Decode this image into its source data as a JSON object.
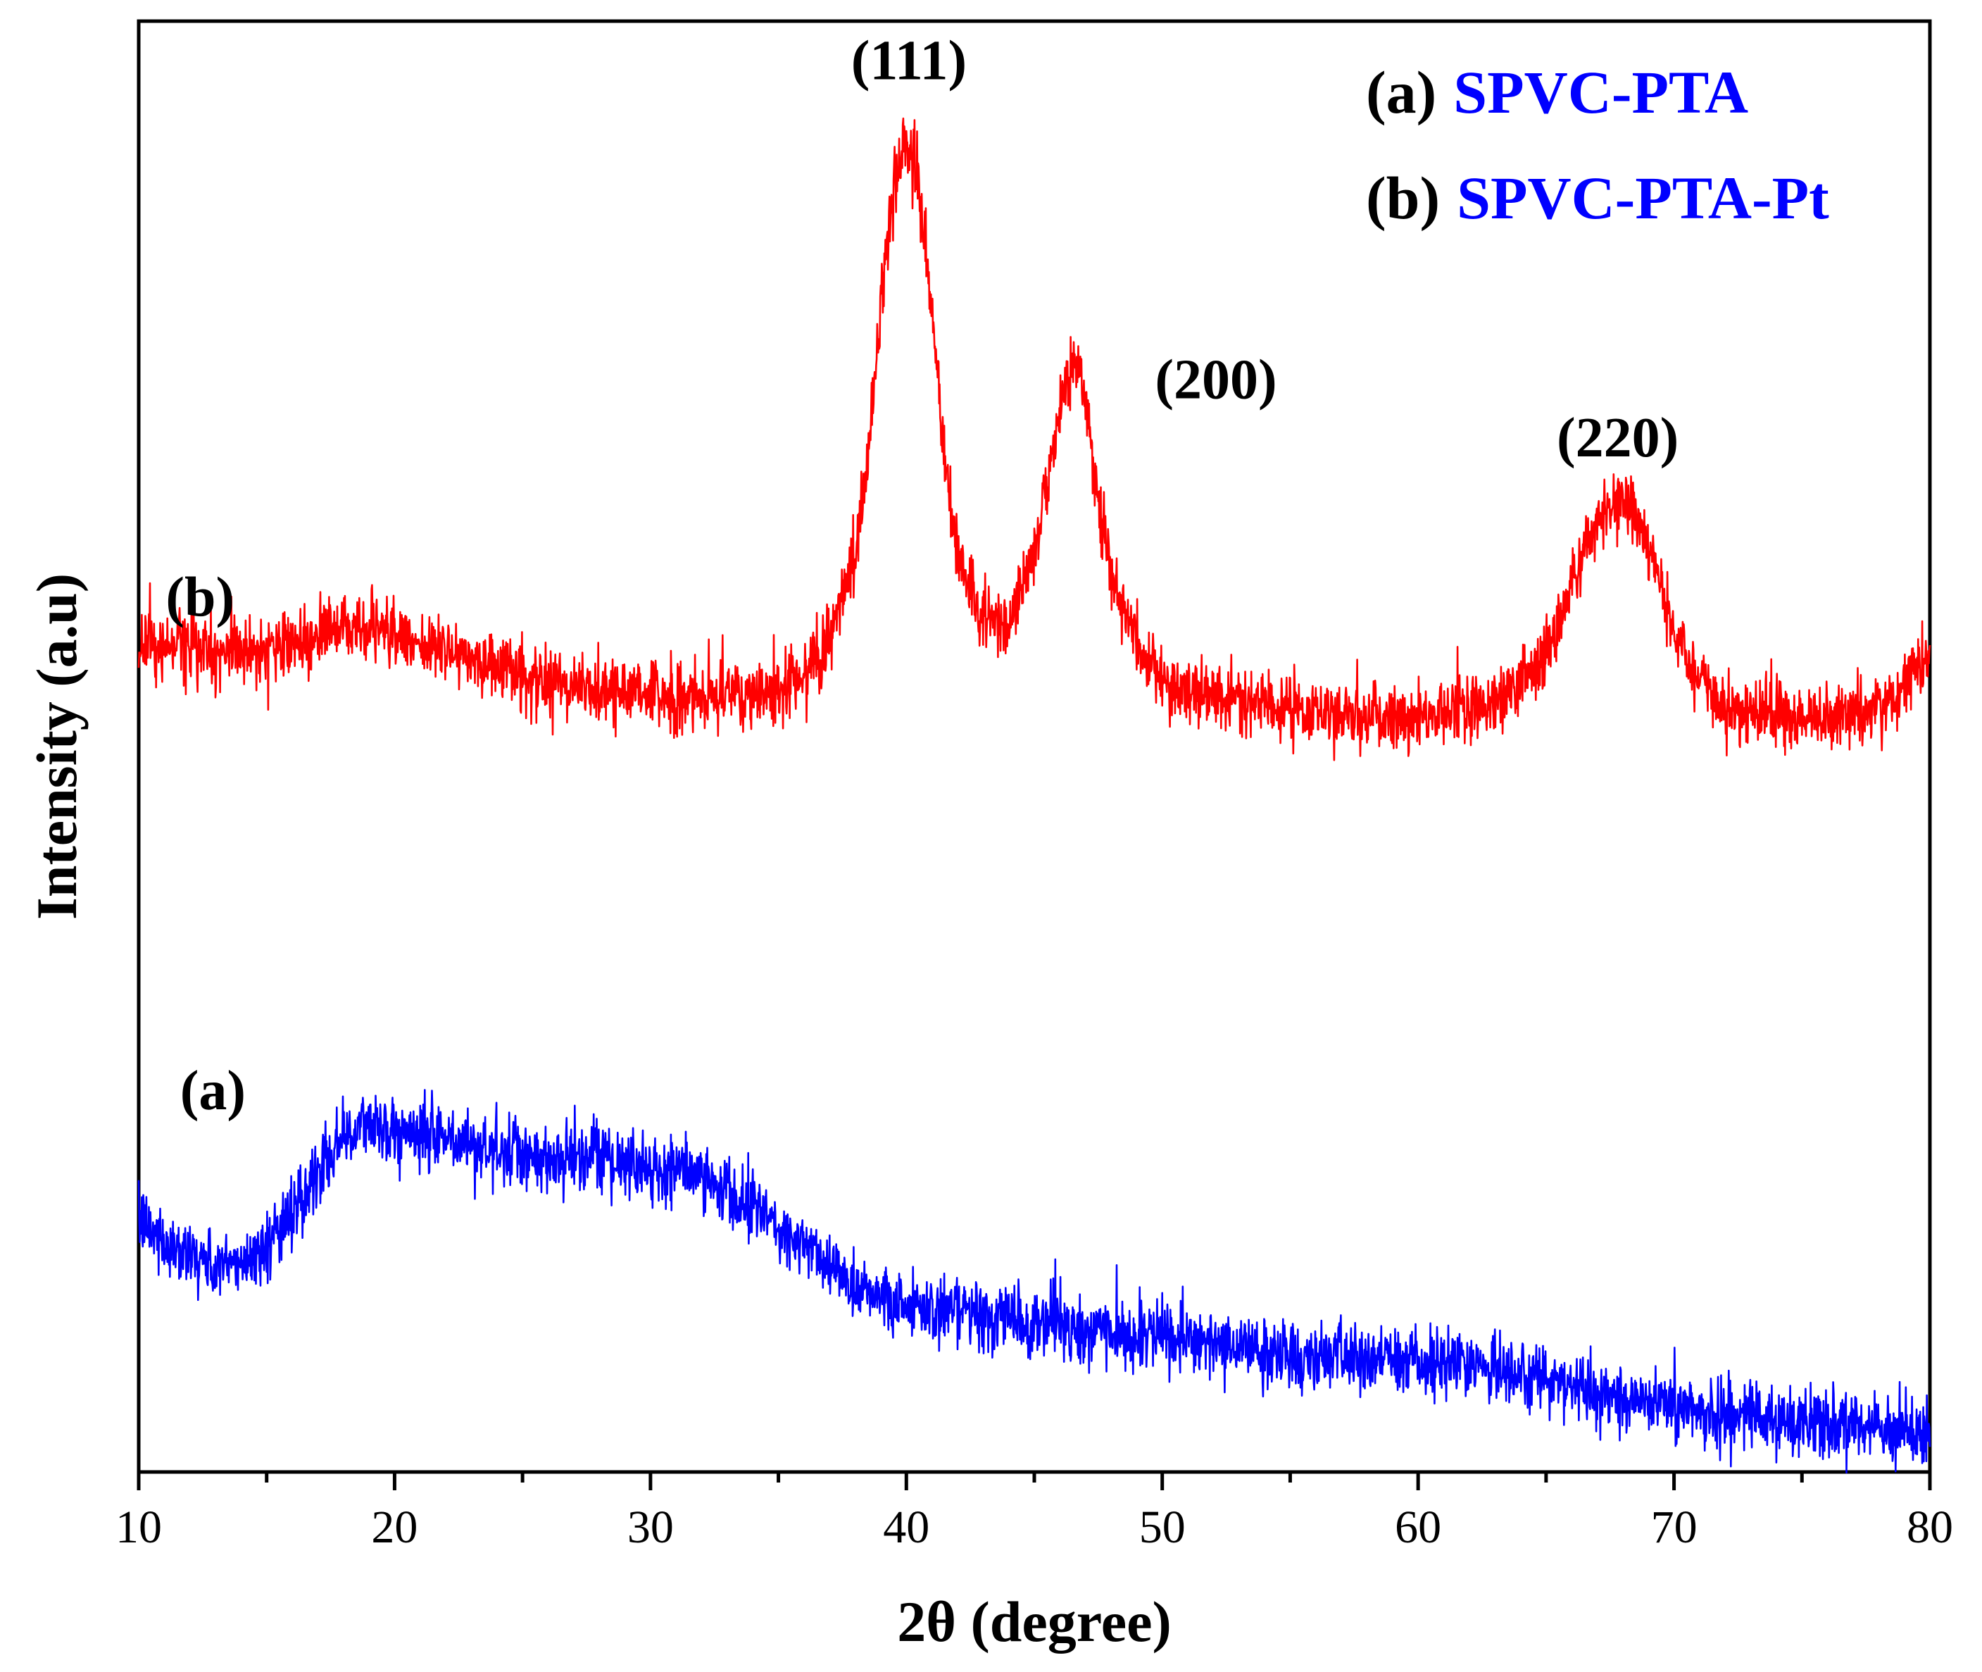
{
  "chart_data": {
    "type": "line",
    "title": "",
    "xlabel": "2θ (degree)",
    "ylabel": "Intensity (a.u)",
    "xlim": [
      10,
      80
    ],
    "ylim": [
      0,
      100
    ],
    "yticks_shown": false,
    "xticks": [
      10,
      20,
      30,
      40,
      50,
      60,
      70,
      80
    ],
    "xtick_labels": [
      "10",
      "20",
      "30",
      "40",
      "50",
      "60",
      "70",
      "80"
    ],
    "legend": {
      "placement": "top-right",
      "entries": [
        {
          "key": "(a)",
          "name": "SPVC-PTA"
        },
        {
          "key": "(b)",
          "name": "SPVC-PTA-Pt"
        }
      ]
    },
    "series": [
      {
        "id": "a",
        "name": "SPVC-PTA",
        "color": "#0000ff",
        "noise": 2.2,
        "x": [
          10,
          11,
          12,
          13,
          14,
          15,
          16,
          17,
          18,
          19,
          20,
          22,
          24,
          26,
          28,
          30,
          32,
          34,
          36,
          38,
          40,
          42,
          44,
          46,
          48,
          50,
          52,
          54,
          56,
          58,
          60,
          62,
          64,
          66,
          68,
          70,
          72,
          74,
          76,
          78,
          80
        ],
        "values": [
          17,
          16,
          15,
          14,
          14.5,
          15.5,
          18,
          21,
          23,
          24,
          23.5,
          23,
          22,
          21.5,
          21.5,
          21,
          20.5,
          18.5,
          15.5,
          13,
          11.5,
          11,
          10.5,
          10,
          9.5,
          9.3,
          8.8,
          8.2,
          8,
          7.8,
          7.5,
          7.3,
          6.8,
          6,
          5.2,
          4.5,
          4,
          3.5,
          3.2,
          3,
          3
        ]
      },
      {
        "id": "b",
        "name": "SPVC-PTA-Pt",
        "color": "#ff0000",
        "noise": 2.2,
        "x": [
          10,
          12,
          14,
          16,
          18,
          20,
          22,
          24,
          26,
          28,
          30,
          32,
          34,
          35,
          36,
          37,
          38,
          38.5,
          39,
          39.5,
          40,
          40.5,
          41,
          41.5,
          42,
          43,
          44,
          45,
          46,
          46.5,
          47,
          47.5,
          48,
          49,
          50,
          52,
          55,
          60,
          63,
          65,
          66,
          67,
          68,
          69,
          70,
          71,
          72,
          75,
          78,
          80
        ],
        "values": [
          57,
          57,
          56.5,
          57,
          58,
          58,
          56.5,
          55.5,
          54.5,
          54,
          53.5,
          53.5,
          53.5,
          54,
          55,
          57.5,
          63,
          70,
          80,
          89,
          92,
          89,
          80,
          70,
          63,
          59,
          59,
          63,
          73,
          76.5,
          74,
          67,
          62,
          57,
          54.5,
          53.5,
          52.5,
          52,
          53,
          56,
          61,
          65.5,
          67,
          64,
          58,
          54.5,
          52.5,
          52,
          52.5,
          56
        ]
      }
    ],
    "annotations": [
      {
        "text": "(111)",
        "x": 40.1,
        "y": 96
      },
      {
        "text": "(200)",
        "x": 52.1,
        "y": 74
      },
      {
        "text": "(220)",
        "x": 67.8,
        "y": 70
      },
      {
        "text": "(b)",
        "x": 12.4,
        "y": 59
      },
      {
        "text": "(a)",
        "x": 12.9,
        "y": 25
      }
    ]
  }
}
